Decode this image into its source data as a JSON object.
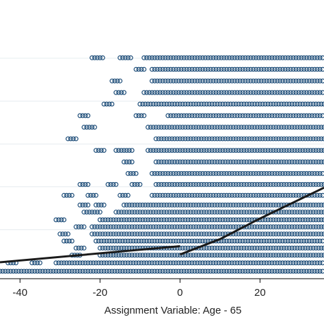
{
  "chart_data": {
    "type": "scatter",
    "xlabel": "Assignment Variable: Age - 65",
    "ylabel": "",
    "x_ticks": [
      -40,
      -20,
      0,
      20
    ],
    "xlim": [
      -45,
      36
    ],
    "ylim": [
      0,
      18
    ],
    "y_gridlines": [
      3.33,
      6.67,
      10.0,
      13.33,
      16.67
    ],
    "grid": true,
    "marker": {
      "shape": "hollow-circle",
      "color": "#1f4e79"
    },
    "line_color": "#1a1a1a",
    "scatter_rows": [
      {
        "y": 0.1,
        "x_ranges": [
          [
            -45,
            36
          ]
        ]
      },
      {
        "y": 0.75,
        "x_ranges": [
          [
            -43,
            -41
          ],
          [
            -37,
            -35
          ],
          [
            -31,
            36
          ]
        ]
      },
      {
        "y": 1.35,
        "x_ranges": [
          [
            -27,
            -25
          ],
          [
            -20,
            36
          ]
        ]
      },
      {
        "y": 1.9,
        "x_ranges": [
          [
            -26,
            -24
          ],
          [
            -20,
            36
          ]
        ]
      },
      {
        "y": 2.45,
        "x_ranges": [
          [
            -29,
            -27
          ],
          [
            -21,
            36
          ]
        ]
      },
      {
        "y": 3.0,
        "x_ranges": [
          [
            -30,
            -28
          ],
          [
            -22,
            36
          ]
        ]
      },
      {
        "y": 3.55,
        "x_ranges": [
          [
            -26,
            -24
          ],
          [
            -22,
            36
          ]
        ]
      },
      {
        "y": 4.1,
        "x_ranges": [
          [
            -31,
            -29
          ],
          [
            -20,
            36
          ]
        ]
      },
      {
        "y": 4.7,
        "x_ranges": [
          [
            -24,
            -20
          ],
          [
            -16,
            36
          ]
        ]
      },
      {
        "y": 5.25,
        "x_ranges": [
          [
            -25,
            -23
          ],
          [
            -21,
            -19
          ],
          [
            -14,
            36
          ]
        ]
      },
      {
        "y": 6.0,
        "x_ranges": [
          [
            -29,
            -27
          ],
          [
            -23,
            -21
          ],
          [
            -15,
            -13
          ],
          [
            -7,
            36
          ]
        ]
      },
      {
        "y": 6.85,
        "x_ranges": [
          [
            -25,
            -23
          ],
          [
            -18,
            -16
          ],
          [
            -12,
            -10
          ],
          [
            -6,
            36
          ]
        ]
      },
      {
        "y": 7.7,
        "x_ranges": [
          [
            -13,
            -11
          ],
          [
            -7,
            36
          ]
        ]
      },
      {
        "y": 8.6,
        "x_ranges": [
          [
            -14,
            -12
          ],
          [
            -6,
            36
          ]
        ]
      },
      {
        "y": 9.5,
        "x_ranges": [
          [
            -21,
            -19
          ],
          [
            -16,
            -12
          ],
          [
            -8,
            36
          ]
        ]
      },
      {
        "y": 10.4,
        "x_ranges": [
          [
            -28,
            -26
          ],
          [
            -6,
            36
          ]
        ]
      },
      {
        "y": 11.3,
        "x_ranges": [
          [
            -24,
            -21
          ],
          [
            -8,
            36
          ]
        ]
      },
      {
        "y": 12.2,
        "x_ranges": [
          [
            -25,
            -23
          ],
          [
            -11,
            -9
          ],
          [
            -3,
            36
          ]
        ]
      },
      {
        "y": 13.1,
        "x_ranges": [
          [
            -19,
            -17
          ],
          [
            -10,
            36
          ]
        ]
      },
      {
        "y": 14.0,
        "x_ranges": [
          [
            -16,
            -14
          ],
          [
            -9,
            36
          ]
        ]
      },
      {
        "y": 14.9,
        "x_ranges": [
          [
            -17,
            -15
          ],
          [
            -7,
            36
          ]
        ]
      },
      {
        "y": 15.8,
        "x_ranges": [
          [
            -11,
            -9
          ],
          [
            -7,
            36
          ]
        ]
      },
      {
        "y": 16.7,
        "x_ranges": [
          [
            -22,
            -19
          ],
          [
            -15,
            -12
          ],
          [
            -9,
            36
          ]
        ]
      }
    ],
    "fit_lines": [
      {
        "side": "left",
        "points": [
          [
            -45,
            0.8
          ],
          [
            0,
            2.05
          ]
        ]
      },
      {
        "side": "right",
        "points": [
          [
            0,
            1.4
          ],
          [
            10,
            2.6
          ],
          [
            20,
            4.2
          ],
          [
            36,
            6.6
          ]
        ]
      }
    ]
  }
}
